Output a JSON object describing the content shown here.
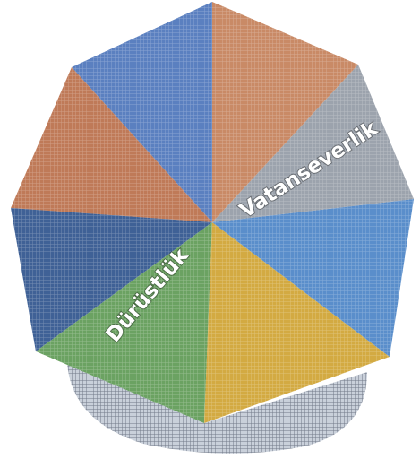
{
  "labels": [
    "Vatanseverlik",
    "Dürüstlük"
  ]
}
